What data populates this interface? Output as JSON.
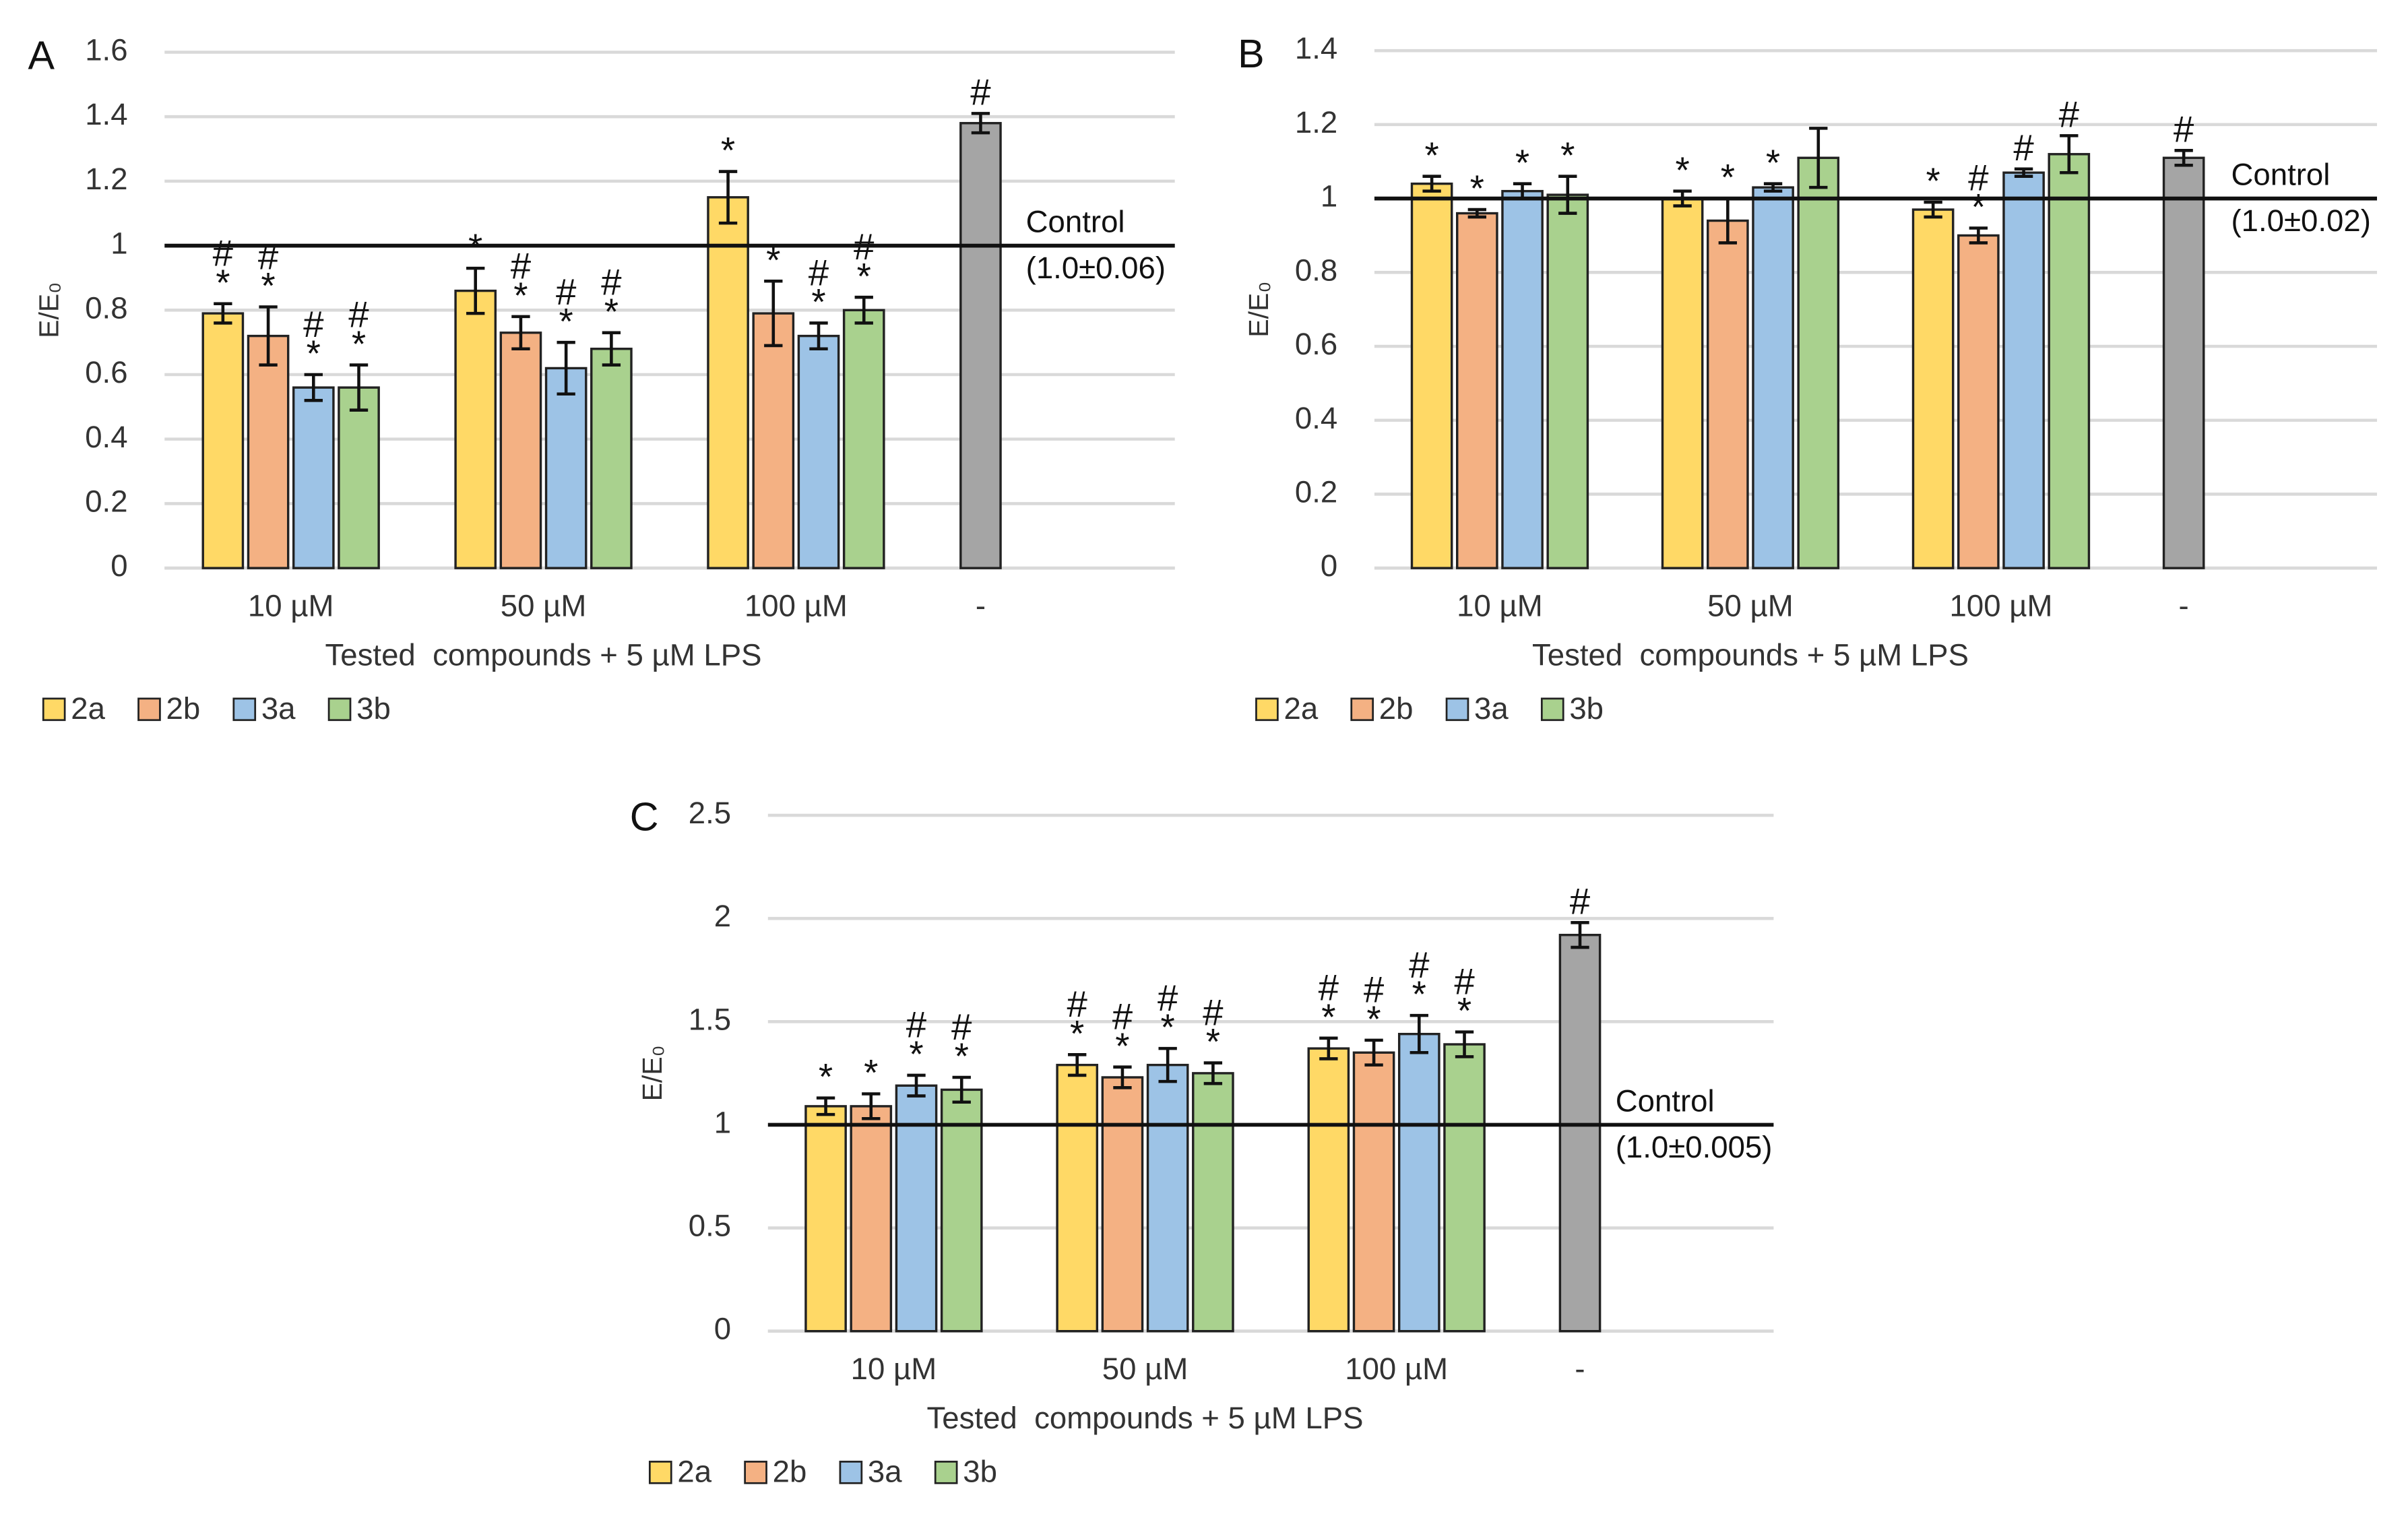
{
  "chart_data": [
    {
      "type": "bar",
      "panel": "A",
      "title": null,
      "categories": [
        "10 µM",
        "50 µM",
        "100 µM",
        "-"
      ],
      "series": [
        {
          "name": "2a",
          "color": "#ffd966",
          "values": [
            0.79,
            0.86,
            1.15,
            null
          ],
          "errors": [
            0.03,
            0.07,
            0.08,
            null
          ],
          "annotations": [
            [
              "#",
              "*"
            ],
            [
              "*"
            ],
            [
              "*"
            ],
            null
          ]
        },
        {
          "name": "2b",
          "color": "#f4b183",
          "values": [
            0.72,
            0.73,
            0.79,
            null
          ],
          "errors": [
            0.09,
            0.05,
            0.1,
            null
          ],
          "annotations": [
            [
              "#",
              "*"
            ],
            [
              "#",
              "*"
            ],
            [
              "*"
            ],
            null
          ]
        },
        {
          "name": "3a",
          "color": "#9dc3e6",
          "values": [
            0.56,
            0.62,
            0.72,
            null
          ],
          "errors": [
            0.04,
            0.08,
            0.04,
            null
          ],
          "annotations": [
            [
              "#",
              "*"
            ],
            [
              "#",
              "*"
            ],
            [
              "#",
              "*"
            ],
            null
          ]
        },
        {
          "name": "3b",
          "color": "#a9d18e",
          "values": [
            0.56,
            0.68,
            0.8,
            null
          ],
          "errors": [
            0.07,
            0.05,
            0.04,
            null
          ],
          "annotations": [
            [
              "#",
              "*"
            ],
            [
              "#",
              "*"
            ],
            [
              "#",
              "*"
            ],
            null
          ]
        }
      ],
      "control": {
        "color": "#a5a5a5",
        "values": [
          null,
          null,
          null,
          1.38
        ],
        "errors": [
          null,
          null,
          null,
          0.03
        ],
        "annotations": [
          null,
          null,
          null,
          [
            "#"
          ]
        ]
      },
      "reference_line": {
        "value": 1,
        "label": "Control",
        "note": "(1.0±0.06)"
      },
      "ylim": [
        0,
        1.6
      ],
      "yticks": [
        0,
        0.2,
        0.4,
        0.6,
        0.8,
        1,
        1.2,
        1.4,
        1.6
      ],
      "grid": true,
      "y_label": "E/E₀",
      "x_label": "Tested  compounds + 5 µM LPS"
    },
    {
      "type": "bar",
      "panel": "B",
      "title": null,
      "categories": [
        "10 µM",
        "50 µM",
        "100 µM",
        "-"
      ],
      "series": [
        {
          "name": "2a",
          "color": "#ffd966",
          "values": [
            1.04,
            1.0,
            0.97,
            null
          ],
          "errors": [
            0.02,
            0.02,
            0.02,
            null
          ],
          "annotations": [
            [
              "*"
            ],
            [
              "*"
            ],
            [
              "*"
            ],
            null
          ]
        },
        {
          "name": "2b",
          "color": "#f4b183",
          "values": [
            0.96,
            0.94,
            0.9,
            null
          ],
          "errors": [
            0.01,
            0.06,
            0.02,
            null
          ],
          "annotations": [
            [
              "*"
            ],
            [
              "*"
            ],
            [
              "#",
              "*"
            ],
            null
          ]
        },
        {
          "name": "3a",
          "color": "#9dc3e6",
          "values": [
            1.02,
            1.03,
            1.07,
            null
          ],
          "errors": [
            0.02,
            0.01,
            0.01,
            null
          ],
          "annotations": [
            [
              "*"
            ],
            [
              "*"
            ],
            [
              "#"
            ],
            null
          ]
        },
        {
          "name": "3b",
          "color": "#a9d18e",
          "values": [
            1.01,
            1.11,
            1.12,
            null
          ],
          "errors": [
            0.05,
            0.08,
            0.05,
            null
          ],
          "annotations": [
            [
              "*"
            ],
            null,
            [
              "#"
            ],
            null
          ]
        }
      ],
      "control": {
        "color": "#a5a5a5",
        "values": [
          null,
          null,
          null,
          1.11
        ],
        "errors": [
          null,
          null,
          null,
          0.02
        ],
        "annotations": [
          null,
          null,
          null,
          [
            "#"
          ]
        ]
      },
      "reference_line": {
        "value": 1,
        "label": "Control",
        "note": "(1.0±0.02)"
      },
      "ylim": [
        0,
        1.4
      ],
      "yticks": [
        0,
        0.2,
        0.4,
        0.6,
        0.8,
        1,
        1.2,
        1.4
      ],
      "grid": true,
      "y_label": "E/E₀",
      "x_label": "Tested  compounds + 5 µM LPS"
    },
    {
      "type": "bar",
      "panel": "C",
      "title": null,
      "categories": [
        "10 µM",
        "50 µM",
        "100 µM",
        "-"
      ],
      "series": [
        {
          "name": "2a",
          "color": "#ffd966",
          "values": [
            1.09,
            1.29,
            1.37,
            null
          ],
          "errors": [
            0.04,
            0.05,
            0.05,
            null
          ],
          "annotations": [
            [
              "*"
            ],
            [
              "#",
              "*"
            ],
            [
              "#",
              "*"
            ],
            null
          ]
        },
        {
          "name": "2b",
          "color": "#f4b183",
          "values": [
            1.09,
            1.23,
            1.35,
            null
          ],
          "errors": [
            0.06,
            0.05,
            0.06,
            null
          ],
          "annotations": [
            [
              "*"
            ],
            [
              "#",
              "*"
            ],
            [
              "#",
              "*"
            ],
            null
          ]
        },
        {
          "name": "3a",
          "color": "#9dc3e6",
          "values": [
            1.19,
            1.29,
            1.44,
            null
          ],
          "errors": [
            0.05,
            0.08,
            0.09,
            null
          ],
          "annotations": [
            [
              "#",
              "*"
            ],
            [
              "#",
              "*"
            ],
            [
              "#",
              "*"
            ],
            null
          ]
        },
        {
          "name": "3b",
          "color": "#a9d18e",
          "values": [
            1.17,
            1.25,
            1.39,
            null
          ],
          "errors": [
            0.06,
            0.05,
            0.06,
            null
          ],
          "annotations": [
            [
              "#",
              "*"
            ],
            [
              "#",
              "*"
            ],
            [
              "#",
              "*"
            ],
            null
          ]
        }
      ],
      "control": {
        "color": "#a5a5a5",
        "values": [
          null,
          null,
          null,
          1.92
        ],
        "errors": [
          null,
          null,
          null,
          0.06
        ],
        "annotations": [
          null,
          null,
          null,
          [
            "#"
          ]
        ]
      },
      "reference_line": {
        "value": 1,
        "label": "Control",
        "note": "(1.0±0.005)"
      },
      "ylim": [
        0,
        2.5
      ],
      "yticks": [
        0,
        0.5,
        1,
        1.5,
        2,
        2.5
      ],
      "grid": true,
      "y_label": "E/E₀",
      "x_label": "Tested  compounds + 5 µM LPS"
    }
  ]
}
